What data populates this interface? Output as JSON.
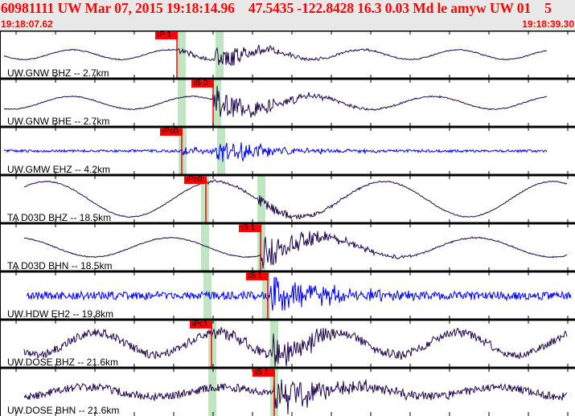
{
  "header": {
    "title": "60981111 UW Mar 07, 2015 19:18:14.96    47.5435 -122.8428 16.3 0.03 Md le amyw UW 01    5",
    "start_time": "19:18:07.62",
    "end_time": "19:18:39.30"
  },
  "colors": {
    "accent": "#ff0000",
    "trace": "#22084f",
    "trace_blue": "#0000ff",
    "window": "#bfe6c0"
  },
  "channels": [
    {
      "label": "UW.GNW BHZ -- 2.7km",
      "pick": "iP 1",
      "color": "trace"
    },
    {
      "label": "UW.GNW BHE -- 2.7km",
      "pick": "iS 0",
      "color": "trace"
    },
    {
      "label": "UW.GMW EHZ -- 4.2km",
      "pick": "iPc0",
      "color": "trace_blue"
    },
    {
      "label": "TA D03D BHZ -- 18.5km",
      "pick": "iPc0",
      "color": "trace"
    },
    {
      "label": "TA D03D BHN -- 18.5km",
      "pick": "iS 1",
      "color": "trace"
    },
    {
      "label": "UW.HDW EH2 -- 19.8km",
      "pick": "iS 1",
      "color": "trace_blue"
    },
    {
      "label": "UW.DOSE BHZ -- 21.6km",
      "pick": "iPc1",
      "color": "trace"
    },
    {
      "label": "UW.DOSE BHN -- 21.6km",
      "pick": "iS 1",
      "color": "trace"
    }
  ]
}
